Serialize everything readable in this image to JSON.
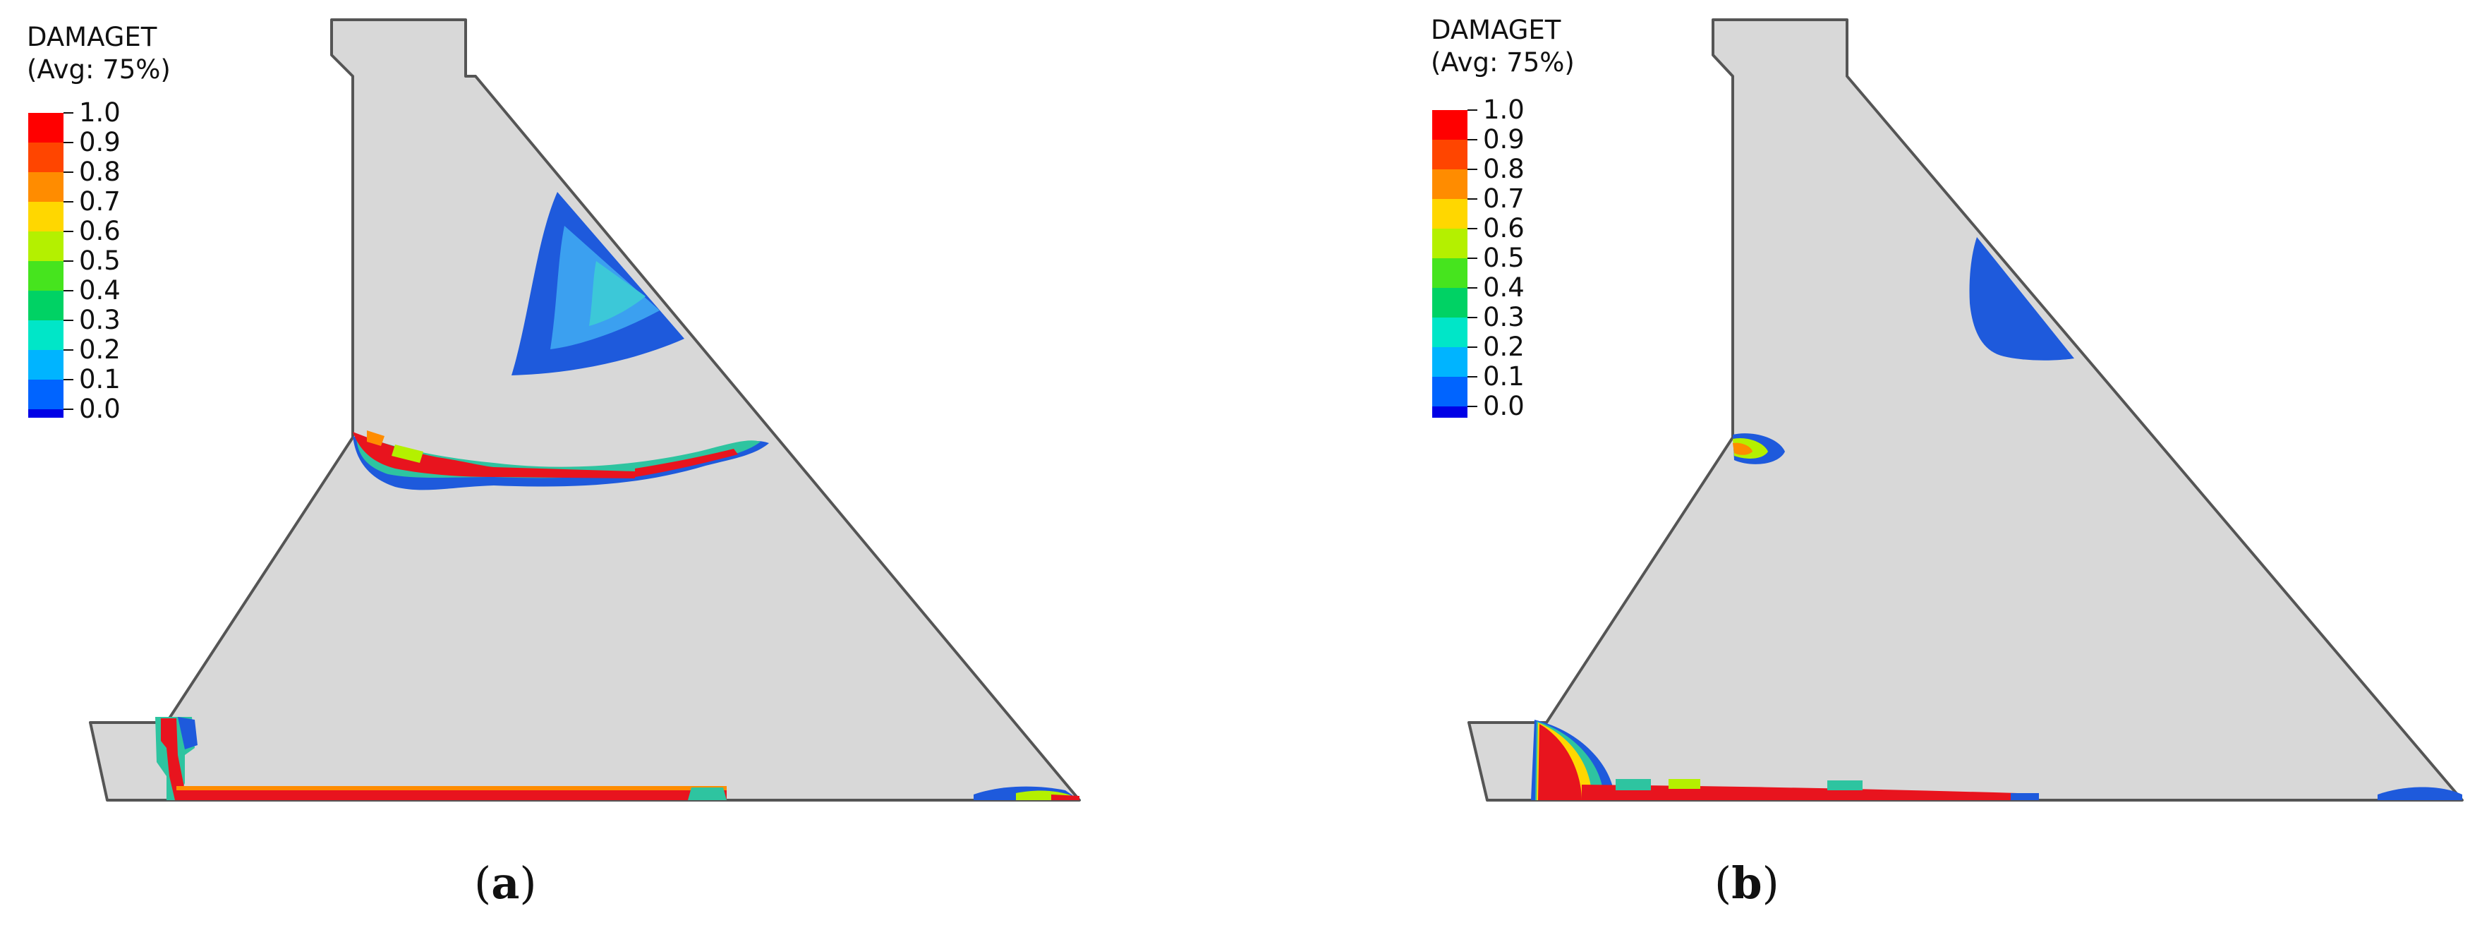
{
  "legend": {
    "variable": "DAMAGET",
    "averaging": "(Avg: 75%)",
    "levels": [
      {
        "label": "1.0",
        "color": "#ff0000"
      },
      {
        "label": "0.9",
        "color": "#ff4500"
      },
      {
        "label": "0.8",
        "color": "#ff8c00"
      },
      {
        "label": "0.7",
        "color": "#ffd700"
      },
      {
        "label": "0.6",
        "color": "#b4f000"
      },
      {
        "label": "0.5",
        "color": "#46e41e"
      },
      {
        "label": "0.4",
        "color": "#00d264"
      },
      {
        "label": "0.3",
        "color": "#00e6c8"
      },
      {
        "label": "0.2",
        "color": "#00b4ff"
      },
      {
        "label": "0.1",
        "color": "#0064ff"
      },
      {
        "label": "0.0",
        "color": "#0000e6"
      }
    ]
  },
  "panels": [
    {
      "id": "a",
      "caption_open": "(",
      "caption_letter": "a",
      "caption_close": ")"
    },
    {
      "id": "b",
      "caption_open": "(",
      "caption_letter": "b",
      "caption_close": ")"
    }
  ],
  "colors": {
    "body_fill": "#d8d8d8",
    "outline": "#555555",
    "damage_high": "#e8141e",
    "damage_low": "#1e5adc",
    "damage_mid": "#3cc8e6"
  }
}
